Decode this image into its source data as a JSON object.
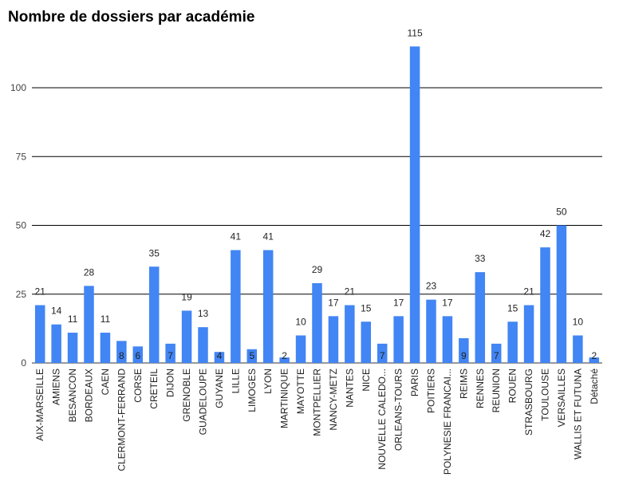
{
  "chart_data": {
    "type": "bar",
    "title": "Nombre de dossiers par académie",
    "xlabel": "",
    "ylabel": "",
    "ylim": [
      0,
      125
    ],
    "yticks": [
      0,
      25,
      50,
      75,
      100
    ],
    "grid": true,
    "legend": "none",
    "bar_color": "#4285F4",
    "categories": [
      "AIX-MARSEILLE",
      "AMIENS",
      "BESANCON",
      "BORDEAUX",
      "CAEN",
      "CLERMONT-FERRAND",
      "CORSE",
      "CRETEIL",
      "DIJON",
      "GRENOBLE",
      "GUADELOUPE",
      "GUYANE",
      "LILLE",
      "LIMOGES",
      "LYON",
      "MARTINIQUE",
      "MAYOTTE",
      "MONTPELLIER",
      "NANCY-METZ",
      "NANTES",
      "NICE",
      "NOUVELLE CALEDO...",
      "ORLEANS-TOURS",
      "PARIS",
      "POITIERS",
      "POLYNESIE FRANCAI...",
      "REIMS",
      "RENNES",
      "REUNION",
      "ROUEN",
      "STRASBOURG",
      "TOULOUSE",
      "VERSAILLES",
      "WALLIS ET FUTUNA",
      "Détaché"
    ],
    "values": [
      21,
      14,
      11,
      28,
      11,
      8,
      6,
      35,
      7,
      19,
      13,
      4,
      41,
      5,
      41,
      2,
      10,
      29,
      17,
      21,
      15,
      7,
      17,
      115,
      23,
      17,
      9,
      33,
      7,
      15,
      21,
      42,
      50,
      10,
      2
    ]
  }
}
